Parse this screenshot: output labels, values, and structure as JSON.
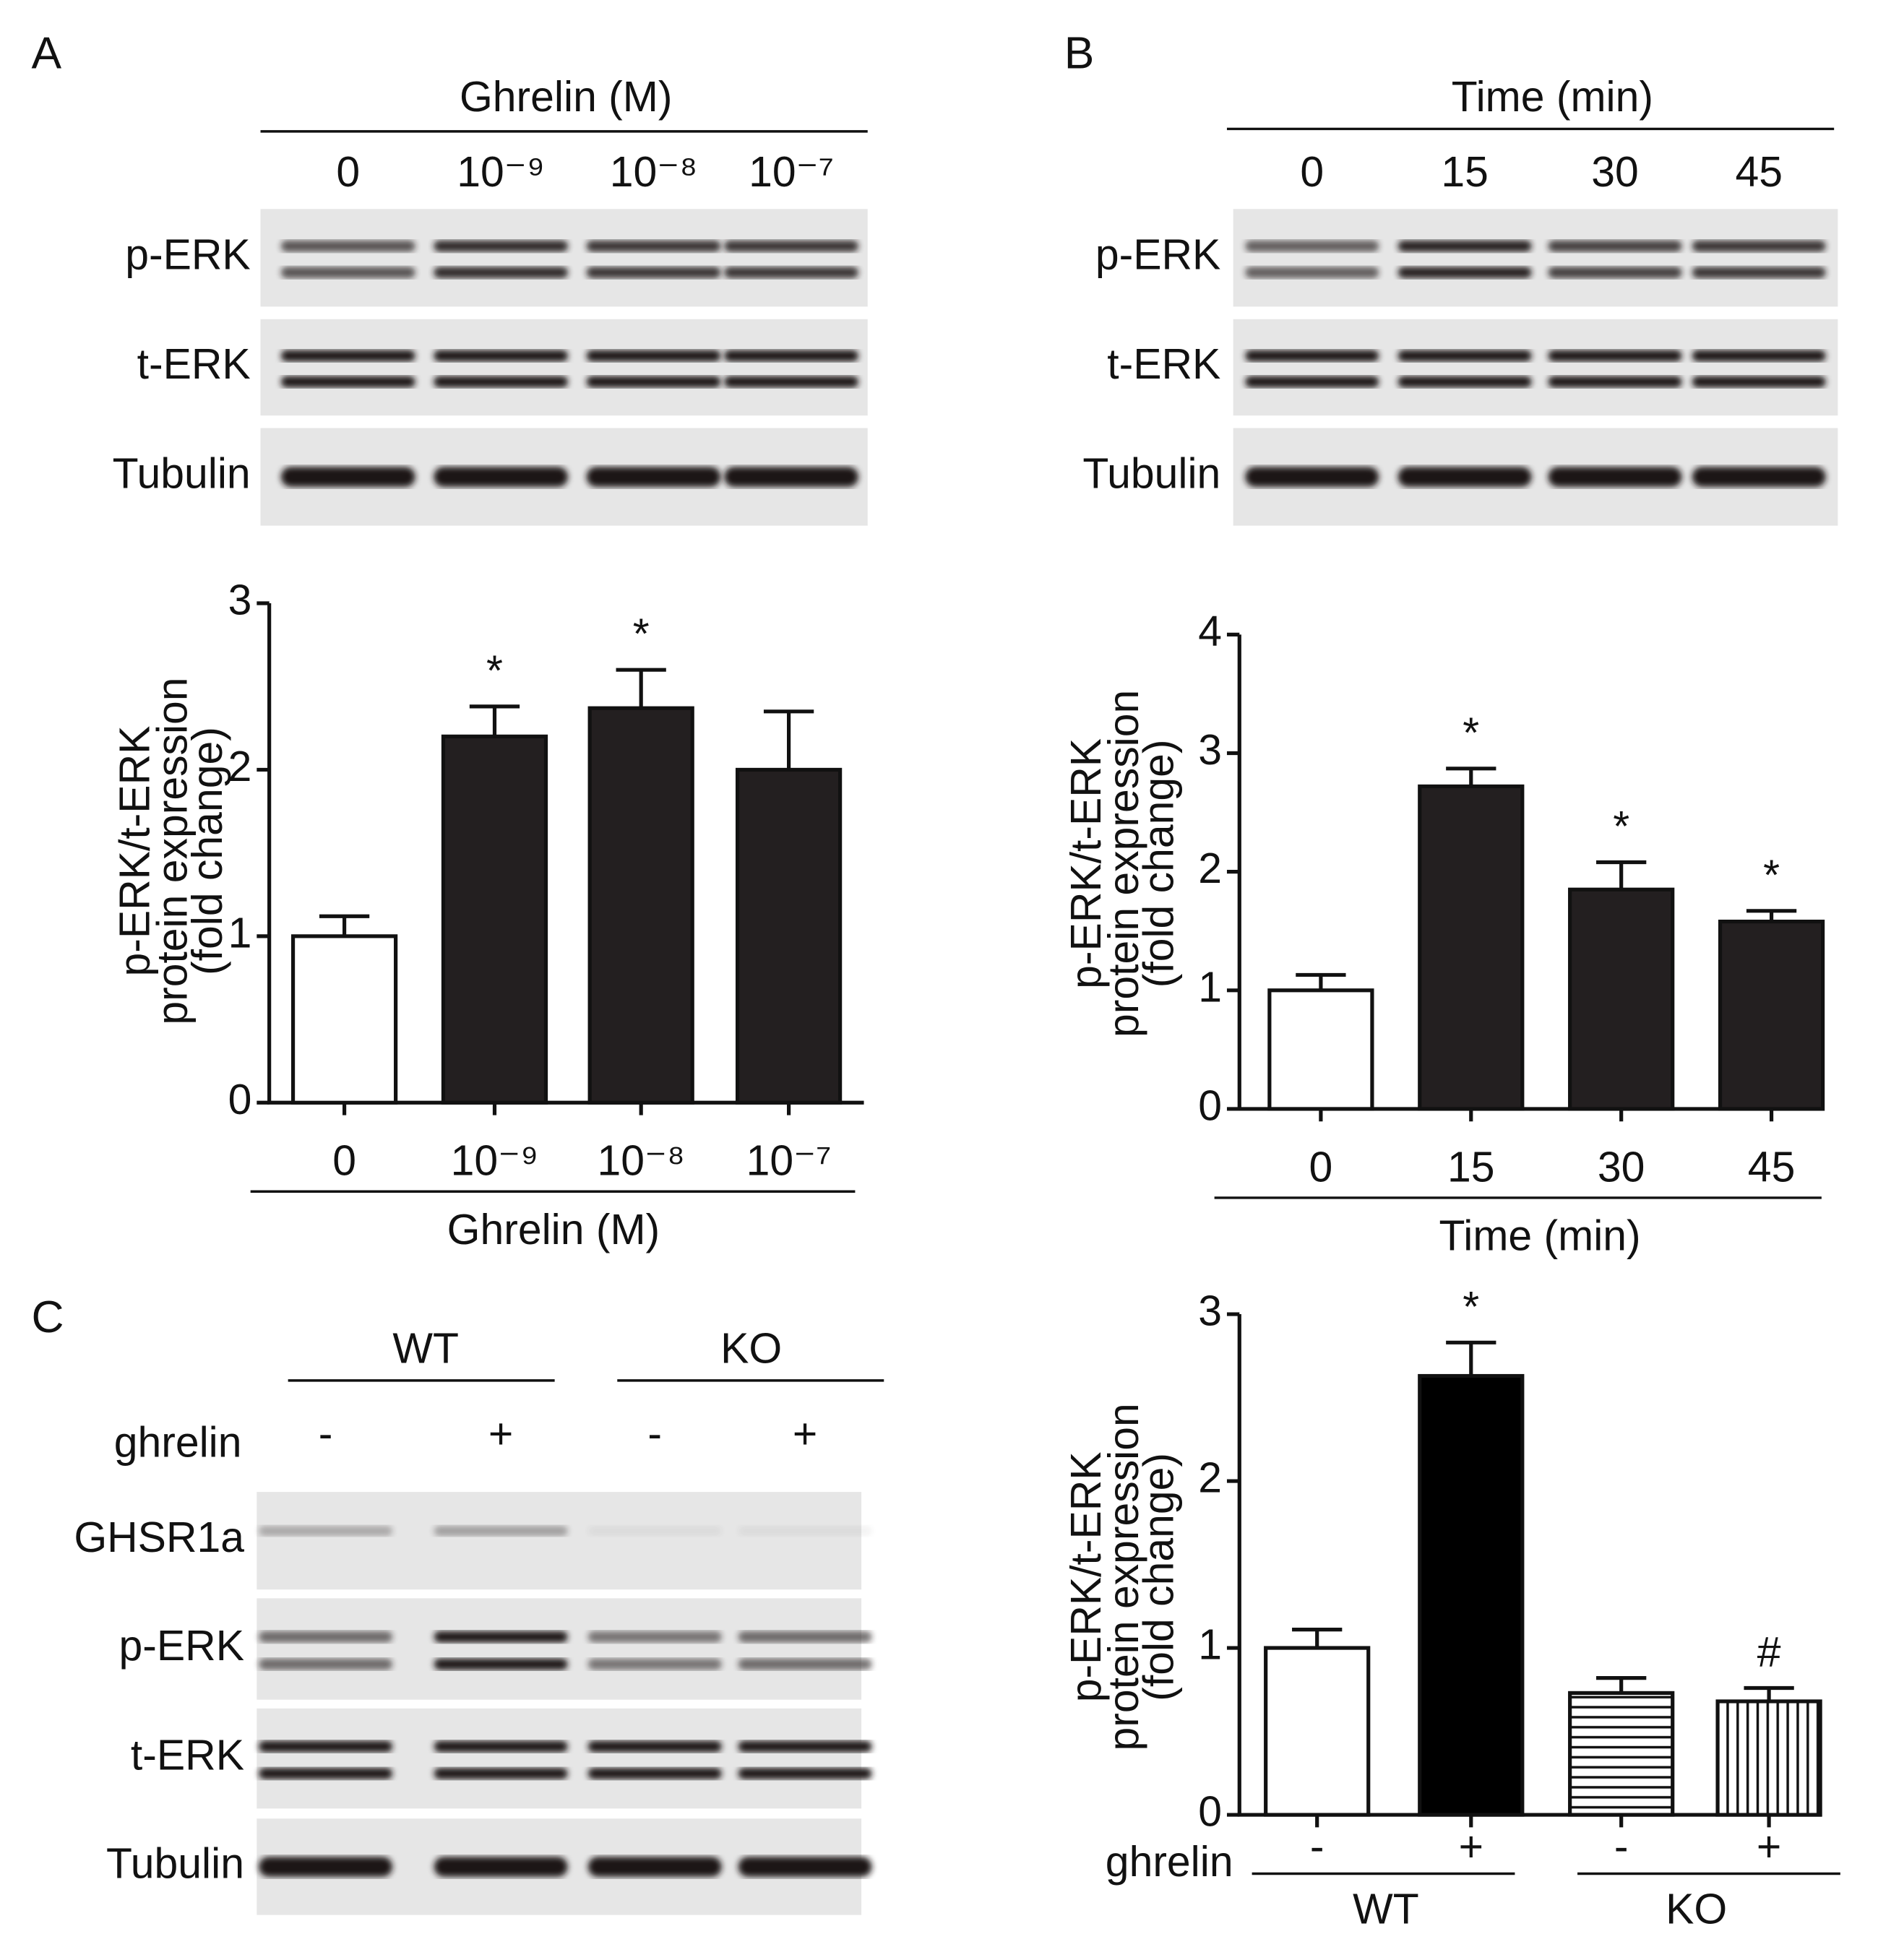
{
  "panels": [
    "A",
    "B",
    "C"
  ],
  "blots": [
    {
      "header": "Ghrelin (M)",
      "lanes": [
        "0",
        "10⁻⁹",
        "10⁻⁸",
        "10⁻⁷"
      ],
      "rows": [
        "p-ERK",
        "t-ERK",
        "Tubulin"
      ]
    },
    {
      "header": "Time (min)",
      "lanes": [
        "0",
        "15",
        "30",
        "45"
      ],
      "rows": [
        "p-ERK",
        "t-ERK",
        "Tubulin"
      ]
    },
    {
      "groups": [
        "WT",
        "KO"
      ],
      "treatment": "ghrelin",
      "lanes": [
        "-",
        "+",
        "-",
        "+"
      ],
      "rows": [
        "GHSR1a",
        "p-ERK",
        "t-ERK",
        "Tubulin"
      ]
    }
  ],
  "chart_data": [
    {
      "type": "bar",
      "ylabel": [
        "p-ERK/t-ERK",
        "protein expression",
        "(fold change)"
      ],
      "xlabel": "Ghrelin (M)",
      "categories": [
        "0",
        "10⁻⁹",
        "10⁻⁸",
        "10⁻⁷"
      ],
      "values": [
        1.0,
        2.2,
        2.37,
        2.0
      ],
      "errors": [
        0.12,
        0.18,
        0.23,
        0.35
      ],
      "annotations": [
        null,
        "*",
        "*",
        null
      ],
      "fills": [
        "white",
        "solid",
        "solid",
        "solid"
      ],
      "color": "#231f20",
      "ylim": [
        0,
        3
      ],
      "yticks": [
        0,
        1,
        2,
        3
      ]
    },
    {
      "type": "bar",
      "ylabel": [
        "p-ERK/t-ERK",
        "protein expression",
        "(fold change)"
      ],
      "xlabel": "Time (min)",
      "categories": [
        "0",
        "15",
        "30",
        "45"
      ],
      "values": [
        1.0,
        2.72,
        1.85,
        1.58
      ],
      "errors": [
        0.13,
        0.15,
        0.23,
        0.09
      ],
      "annotations": [
        null,
        "*",
        "*",
        "*"
      ],
      "fills": [
        "white",
        "solid",
        "solid",
        "solid"
      ],
      "color": "#231f20",
      "ylim": [
        0,
        4
      ],
      "yticks": [
        0,
        1,
        2,
        3,
        4
      ]
    },
    {
      "type": "bar",
      "ylabel": [
        "p-ERK/t-ERK",
        "protein expression",
        "(fold change)"
      ],
      "x_row_label": "ghrelin",
      "categories": [
        "-",
        "+",
        "-",
        "+"
      ],
      "groups": [
        "WT",
        "KO"
      ],
      "values": [
        1.0,
        2.63,
        0.73,
        0.68
      ],
      "errors": [
        0.11,
        0.2,
        0.09,
        0.08
      ],
      "annotations": [
        null,
        "*",
        null,
        "#"
      ],
      "fills": [
        "white",
        "solid",
        "horizontal-lines",
        "vertical-lines"
      ],
      "color": "#000000",
      "ylim": [
        0,
        3
      ],
      "yticks": [
        0,
        1,
        2,
        3
      ]
    }
  ]
}
